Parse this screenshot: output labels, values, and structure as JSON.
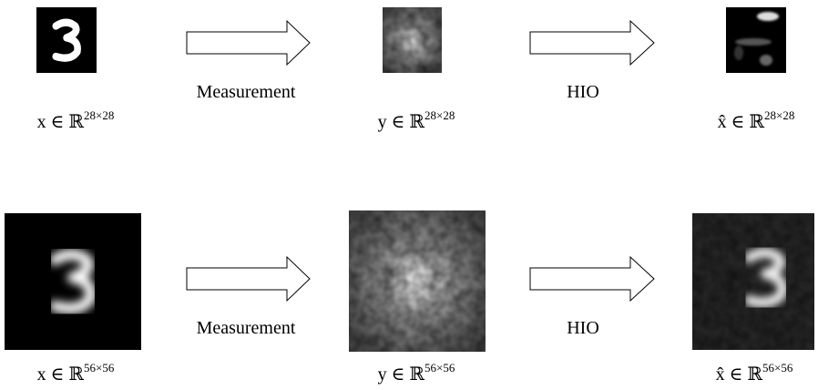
{
  "rows": [
    {
      "input": {
        "label": "x ∈ ℝ",
        "superscript": "28×28"
      },
      "measurement": "Measurement",
      "measured": {
        "label": "y ∈ ℝ",
        "superscript": "28×28"
      },
      "algorithm": "HIO",
      "output": {
        "label": "x̂ ∈ ℝ",
        "superscript": "28×28"
      }
    },
    {
      "input": {
        "label": "x ∈ ℝ",
        "superscript": "56×56"
      },
      "measurement": "Measurement",
      "measured": {
        "label": "y ∈ ℝ",
        "superscript": "56×56"
      },
      "algorithm": "HIO",
      "output": {
        "label": "x̂ ∈ ℝ",
        "superscript": "56×56"
      }
    }
  ]
}
